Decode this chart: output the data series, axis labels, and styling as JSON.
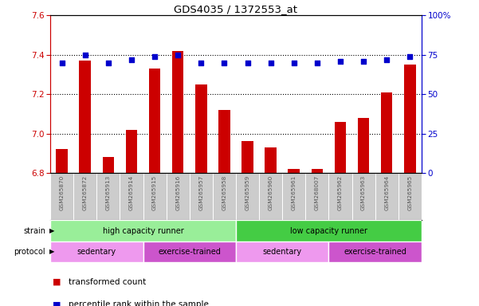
{
  "title": "GDS4035 / 1372553_at",
  "samples": [
    "GSM265870",
    "GSM265872",
    "GSM265913",
    "GSM265914",
    "GSM265915",
    "GSM265916",
    "GSM265957",
    "GSM265958",
    "GSM265959",
    "GSM265960",
    "GSM265961",
    "GSM268007",
    "GSM265962",
    "GSM265963",
    "GSM265964",
    "GSM265965"
  ],
  "bar_values": [
    6.92,
    7.37,
    6.88,
    7.02,
    7.33,
    7.42,
    7.25,
    7.12,
    6.96,
    6.93,
    6.82,
    6.82,
    7.06,
    7.08,
    7.21,
    7.35
  ],
  "dot_values": [
    70,
    75,
    70,
    72,
    74,
    75,
    70,
    70,
    70,
    70,
    70,
    70,
    71,
    71,
    72,
    74
  ],
  "ylim_left": [
    6.8,
    7.6
  ],
  "ylim_right": [
    0,
    100
  ],
  "yticks_left": [
    6.8,
    7.0,
    7.2,
    7.4,
    7.6
  ],
  "yticks_right": [
    0,
    25,
    50,
    75,
    100
  ],
  "bar_color": "#cc0000",
  "dot_color": "#0000cc",
  "bar_bottom": 6.8,
  "strain_labels": [
    {
      "label": "high capacity runner",
      "start": 0,
      "end": 8,
      "color": "#99ee99"
    },
    {
      "label": "low capacity runner",
      "start": 8,
      "end": 16,
      "color": "#44cc44"
    }
  ],
  "protocol_labels": [
    {
      "label": "sedentary",
      "start": 0,
      "end": 4,
      "color": "#ee99ee"
    },
    {
      "label": "exercise-trained",
      "start": 4,
      "end": 8,
      "color": "#cc55cc"
    },
    {
      "label": "sedentary",
      "start": 8,
      "end": 12,
      "color": "#ee99ee"
    },
    {
      "label": "exercise-trained",
      "start": 12,
      "end": 16,
      "color": "#cc55cc"
    }
  ],
  "legend_items": [
    {
      "color": "#cc0000",
      "label": "transformed count"
    },
    {
      "color": "#0000cc",
      "label": "percentile rank within the sample"
    }
  ],
  "left_axis_color": "#cc0000",
  "right_axis_color": "#0000cc",
  "sample_label_color": "#555555",
  "sample_bg_color": "#cccccc"
}
